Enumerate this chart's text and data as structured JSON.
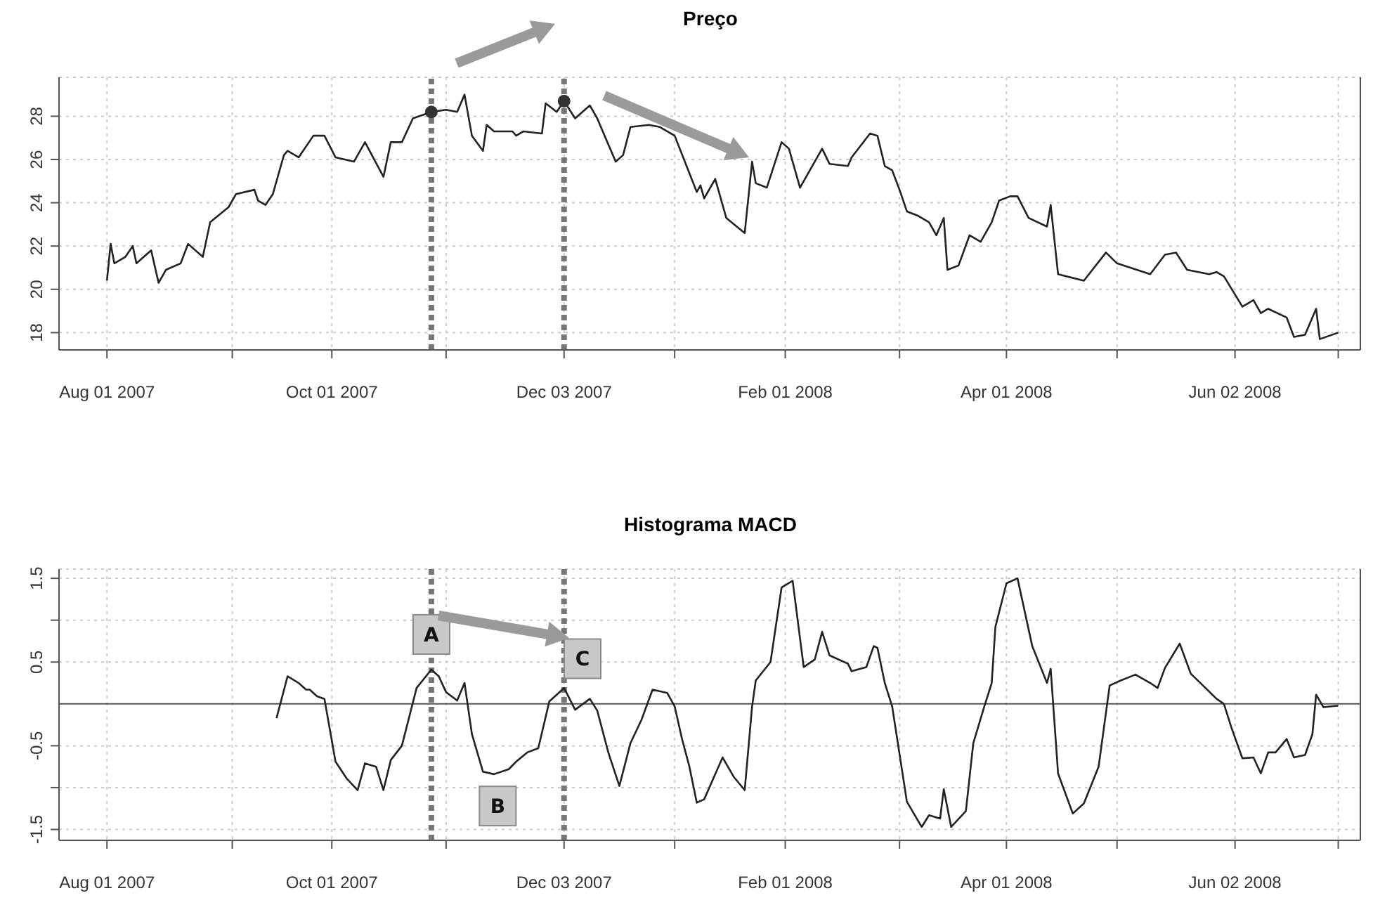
{
  "chart_data": [
    {
      "type": "line",
      "title": "Preço",
      "xlim": [
        "2007-07-19",
        "2008-07-06"
      ],
      "xticks": [
        {
          "value": "2007-08-01",
          "label": "Aug 01 2007"
        },
        {
          "value": "2007-09-04",
          "label": null
        },
        {
          "value": "2007-10-01",
          "label": "Oct 01 2007"
        },
        {
          "value": "2007-11-01",
          "label": null
        },
        {
          "value": "2007-12-03",
          "label": "Dec 03 2007"
        },
        {
          "value": "2008-01-02",
          "label": null
        },
        {
          "value": "2008-02-01",
          "label": "Feb 01 2008"
        },
        {
          "value": "2008-03-03",
          "label": null
        },
        {
          "value": "2008-04-01",
          "label": "Apr 01 2008"
        },
        {
          "value": "2008-05-01",
          "label": null
        },
        {
          "value": "2008-06-02",
          "label": "Jun 02 2008"
        },
        {
          "value": "2008-06-30",
          "label": null
        }
      ],
      "ylim": [
        17.2,
        29.8
      ],
      "yticks": [
        18,
        20,
        22,
        24,
        26,
        28
      ],
      "grid": true,
      "series": [
        {
          "color": "#222222",
          "marker": "none",
          "x": [
            "2007-08-01",
            "2007-08-02",
            "2007-08-03",
            "2007-08-06",
            "2007-08-08",
            "2007-08-09",
            "2007-08-13",
            "2007-08-15",
            "2007-08-17",
            "2007-08-21",
            "2007-08-23",
            "2007-08-27",
            "2007-08-29",
            "2007-09-03",
            "2007-09-05",
            "2007-09-10",
            "2007-09-11",
            "2007-09-13",
            "2007-09-15",
            "2007-09-18",
            "2007-09-19",
            "2007-09-22",
            "2007-09-26",
            "2007-09-29",
            "2007-10-02",
            "2007-10-07",
            "2007-10-10",
            "2007-10-15",
            "2007-10-17",
            "2007-10-20",
            "2007-10-23",
            "2007-10-28",
            "2007-11-01",
            "2007-11-04",
            "2007-11-06",
            "2007-11-08",
            "2007-11-11",
            "2007-11-12",
            "2007-11-14",
            "2007-11-19",
            "2007-11-20",
            "2007-11-22",
            "2007-11-27",
            "2007-11-28",
            "2007-12-01",
            "2007-12-03",
            "2007-12-06",
            "2007-12-10",
            "2007-12-12",
            "2007-12-14",
            "2007-12-17",
            "2007-12-19",
            "2007-12-21",
            "2007-12-26",
            "2007-12-29",
            "2008-01-02",
            "2008-01-05",
            "2008-01-08",
            "2008-01-09",
            "2008-01-10",
            "2008-01-13",
            "2008-01-16",
            "2008-01-21",
            "2008-01-23",
            "2008-01-24",
            "2008-01-27",
            "2008-01-31",
            "2008-02-02",
            "2008-02-05",
            "2008-02-11",
            "2008-02-13",
            "2008-02-18",
            "2008-02-19",
            "2008-02-24",
            "2008-02-26",
            "2008-02-28",
            "2008-03-01",
            "2008-03-03",
            "2008-03-05",
            "2008-03-08",
            "2008-03-11",
            "2008-03-13",
            "2008-03-15",
            "2008-03-16",
            "2008-03-19",
            "2008-03-22",
            "2008-03-25",
            "2008-03-28",
            "2008-03-30",
            "2008-04-02",
            "2008-04-04",
            "2008-04-07",
            "2008-04-12",
            "2008-04-13",
            "2008-04-15",
            "2008-04-22",
            "2008-04-28",
            "2008-05-01",
            "2008-05-10",
            "2008-05-14",
            "2008-05-17",
            "2008-05-20",
            "2008-05-26",
            "2008-05-28",
            "2008-05-30",
            "2008-06-04",
            "2008-06-07",
            "2008-06-09",
            "2008-06-11",
            "2008-06-16",
            "2008-06-18",
            "2008-06-21",
            "2008-06-24",
            "2008-06-25",
            "2008-06-30"
          ],
          "values": [
            20.4,
            22.1,
            21.2,
            21.5,
            22.0,
            21.2,
            21.8,
            20.3,
            20.9,
            21.2,
            22.1,
            21.5,
            23.1,
            23.8,
            24.4,
            24.6,
            24.1,
            23.9,
            24.4,
            26.2,
            26.4,
            26.1,
            27.1,
            27.1,
            26.1,
            25.9,
            26.8,
            25.2,
            26.8,
            26.8,
            27.9,
            28.2,
            28.3,
            28.2,
            29.0,
            27.1,
            26.4,
            27.6,
            27.3,
            27.3,
            27.1,
            27.3,
            27.2,
            28.6,
            28.2,
            28.7,
            27.9,
            28.5,
            27.9,
            27.1,
            25.9,
            26.2,
            27.5,
            27.6,
            27.5,
            27.1,
            25.8,
            24.5,
            24.8,
            24.2,
            25.1,
            23.3,
            22.6,
            25.9,
            24.9,
            24.7,
            26.8,
            26.5,
            24.7,
            26.5,
            25.8,
            25.7,
            26.1,
            27.2,
            27.1,
            25.7,
            25.5,
            24.6,
            23.6,
            23.4,
            23.1,
            22.5,
            23.3,
            20.9,
            21.1,
            22.5,
            22.2,
            23.1,
            24.1,
            24.3,
            24.3,
            23.3,
            22.9,
            23.9,
            20.7,
            20.4,
            21.7,
            21.2,
            20.7,
            21.6,
            21.7,
            20.9,
            20.7,
            20.8,
            20.6,
            19.2,
            19.5,
            18.9,
            19.1,
            18.7,
            17.8,
            17.9,
            19.1,
            17.7,
            18.0
          ]
        },
        {
          "type": "scatter",
          "color": "#333333",
          "marker": "circle",
          "x": [
            "2007-10-28",
            "2007-12-03"
          ],
          "values": [
            28.2,
            28.7
          ]
        }
      ],
      "ref_lines": [
        {
          "axis": "x",
          "value": "2007-10-28",
          "color": "#777777",
          "line_style": "dotted"
        },
        {
          "axis": "x",
          "value": "2007-12-03",
          "color": "#777777",
          "line_style": "dotted"
        }
      ]
    },
    {
      "type": "line",
      "title": "Histograma MACD",
      "xlim": [
        "2007-07-19",
        "2008-07-06"
      ],
      "xticks": [
        {
          "value": "2007-08-01",
          "label": "Aug 01 2007"
        },
        {
          "value": "2007-09-04",
          "label": null
        },
        {
          "value": "2007-10-01",
          "label": "Oct 01 2007"
        },
        {
          "value": "2007-11-01",
          "label": null
        },
        {
          "value": "2007-12-03",
          "label": "Dec 03 2007"
        },
        {
          "value": "2008-01-02",
          "label": null
        },
        {
          "value": "2008-02-01",
          "label": "Feb 01 2008"
        },
        {
          "value": "2008-03-03",
          "label": null
        },
        {
          "value": "2008-04-01",
          "label": "Apr 01 2008"
        },
        {
          "value": "2008-05-01",
          "label": null
        },
        {
          "value": "2008-06-02",
          "label": "Jun 02 2008"
        },
        {
          "value": "2008-06-30",
          "label": null
        }
      ],
      "ylim": [
        -1.63,
        1.61
      ],
      "yticks": [
        -1.5,
        {
          "value": -1,
          "label": null
        },
        -0.5,
        0.5,
        {
          "value": 1,
          "label": null
        },
        1.5
      ],
      "grid": true,
      "series": [
        {
          "color": "#222222",
          "marker": "none",
          "x": [
            "2007-09-16",
            "2007-09-19",
            "2007-09-22",
            "2007-09-24",
            "2007-09-25",
            "2007-09-27",
            "2007-09-29",
            "2007-10-02",
            "2007-10-05",
            "2007-10-08",
            "2007-10-10",
            "2007-10-13",
            "2007-10-15",
            "2007-10-17",
            "2007-10-20",
            "2007-10-24",
            "2007-10-28",
            "2007-10-30",
            "2007-11-01",
            "2007-11-04",
            "2007-11-06",
            "2007-11-08",
            "2007-11-11",
            "2007-11-14",
            "2007-11-18",
            "2007-11-20",
            "2007-11-23",
            "2007-11-26",
            "2007-11-29",
            "2007-12-03",
            "2007-12-06",
            "2007-12-10",
            "2007-12-12",
            "2007-12-15",
            "2007-12-18",
            "2007-12-21",
            "2007-12-24",
            "2007-12-27",
            "2007-12-31",
            "2008-01-02",
            "2008-01-04",
            "2008-01-06",
            "2008-01-08",
            "2008-01-10",
            "2008-01-15",
            "2008-01-18",
            "2008-01-21",
            "2008-01-23",
            "2008-01-24",
            "2008-01-28",
            "2008-01-31",
            "2008-02-03",
            "2008-02-06",
            "2008-02-09",
            "2008-02-11",
            "2008-02-13",
            "2008-02-18",
            "2008-02-19",
            "2008-02-23",
            "2008-02-25",
            "2008-02-26",
            "2008-02-28",
            "2008-03-01",
            "2008-03-05",
            "2008-03-09",
            "2008-03-11",
            "2008-03-14",
            "2008-03-15",
            "2008-03-17",
            "2008-03-21",
            "2008-03-23",
            "2008-03-26",
            "2008-03-28",
            "2008-03-29",
            "2008-04-01",
            "2008-04-04",
            "2008-04-08",
            "2008-04-12",
            "2008-04-13",
            "2008-04-15",
            "2008-04-19",
            "2008-04-22",
            "2008-04-26",
            "2008-04-29",
            "2008-05-02",
            "2008-05-06",
            "2008-05-10",
            "2008-05-12",
            "2008-05-14",
            "2008-05-18",
            "2008-05-21",
            "2008-05-25",
            "2008-05-28",
            "2008-05-30",
            "2008-06-01",
            "2008-06-04",
            "2008-06-07",
            "2008-06-09",
            "2008-06-11",
            "2008-06-13",
            "2008-06-16",
            "2008-06-18",
            "2008-06-21",
            "2008-06-23",
            "2008-06-24",
            "2008-06-26",
            "2008-06-30"
          ],
          "values": [
            -0.17,
            0.33,
            0.25,
            0.17,
            0.17,
            0.09,
            0.06,
            -0.69,
            -0.89,
            -1.03,
            -0.71,
            -0.75,
            -1.03,
            -0.67,
            -0.5,
            0.19,
            0.41,
            0.33,
            0.14,
            0.04,
            0.25,
            -0.36,
            -0.81,
            -0.84,
            -0.78,
            -0.69,
            -0.58,
            -0.53,
            0.03,
            0.19,
            -0.07,
            0.06,
            -0.08,
            -0.58,
            -0.98,
            -0.47,
            -0.19,
            0.17,
            0.13,
            -0.03,
            -0.42,
            -0.75,
            -1.18,
            -1.14,
            -0.64,
            -0.87,
            -1.03,
            -0.03,
            0.28,
            0.5,
            1.39,
            1.47,
            0.44,
            0.53,
            0.86,
            0.58,
            0.48,
            0.39,
            0.44,
            0.69,
            0.67,
            0.25,
            -0.03,
            -1.17,
            -1.47,
            -1.33,
            -1.37,
            -1.02,
            -1.47,
            -1.28,
            -0.47,
            -0.03,
            0.25,
            0.92,
            1.44,
            1.5,
            0.69,
            0.25,
            0.42,
            -0.83,
            -1.31,
            -1.19,
            -0.75,
            0.22,
            0.28,
            0.35,
            0.25,
            0.19,
            0.43,
            0.72,
            0.36,
            0.19,
            0.06,
            0,
            -0.28,
            -0.65,
            -0.64,
            -0.83,
            -0.58,
            -0.58,
            -0.42,
            -0.64,
            -0.61,
            -0.36,
            0.11,
            -0.04,
            -0.02
          ]
        }
      ],
      "ref_lines": [
        {
          "axis": "y",
          "value": 0,
          "color": "#555555",
          "line_style": "solid"
        },
        {
          "axis": "x",
          "value": "2007-10-28",
          "color": "#777777",
          "line_style": "dotted"
        },
        {
          "axis": "x",
          "value": "2007-12-03",
          "color": "#777777",
          "line_style": "dotted"
        }
      ],
      "annotations": [
        {
          "text": "A",
          "x": "2007-10-28",
          "y": 0.83
        },
        {
          "text": "B",
          "x": "2007-11-15",
          "y": -1.22
        },
        {
          "text": "C",
          "x": "2007-12-08",
          "y": 0.54
        }
      ]
    }
  ]
}
